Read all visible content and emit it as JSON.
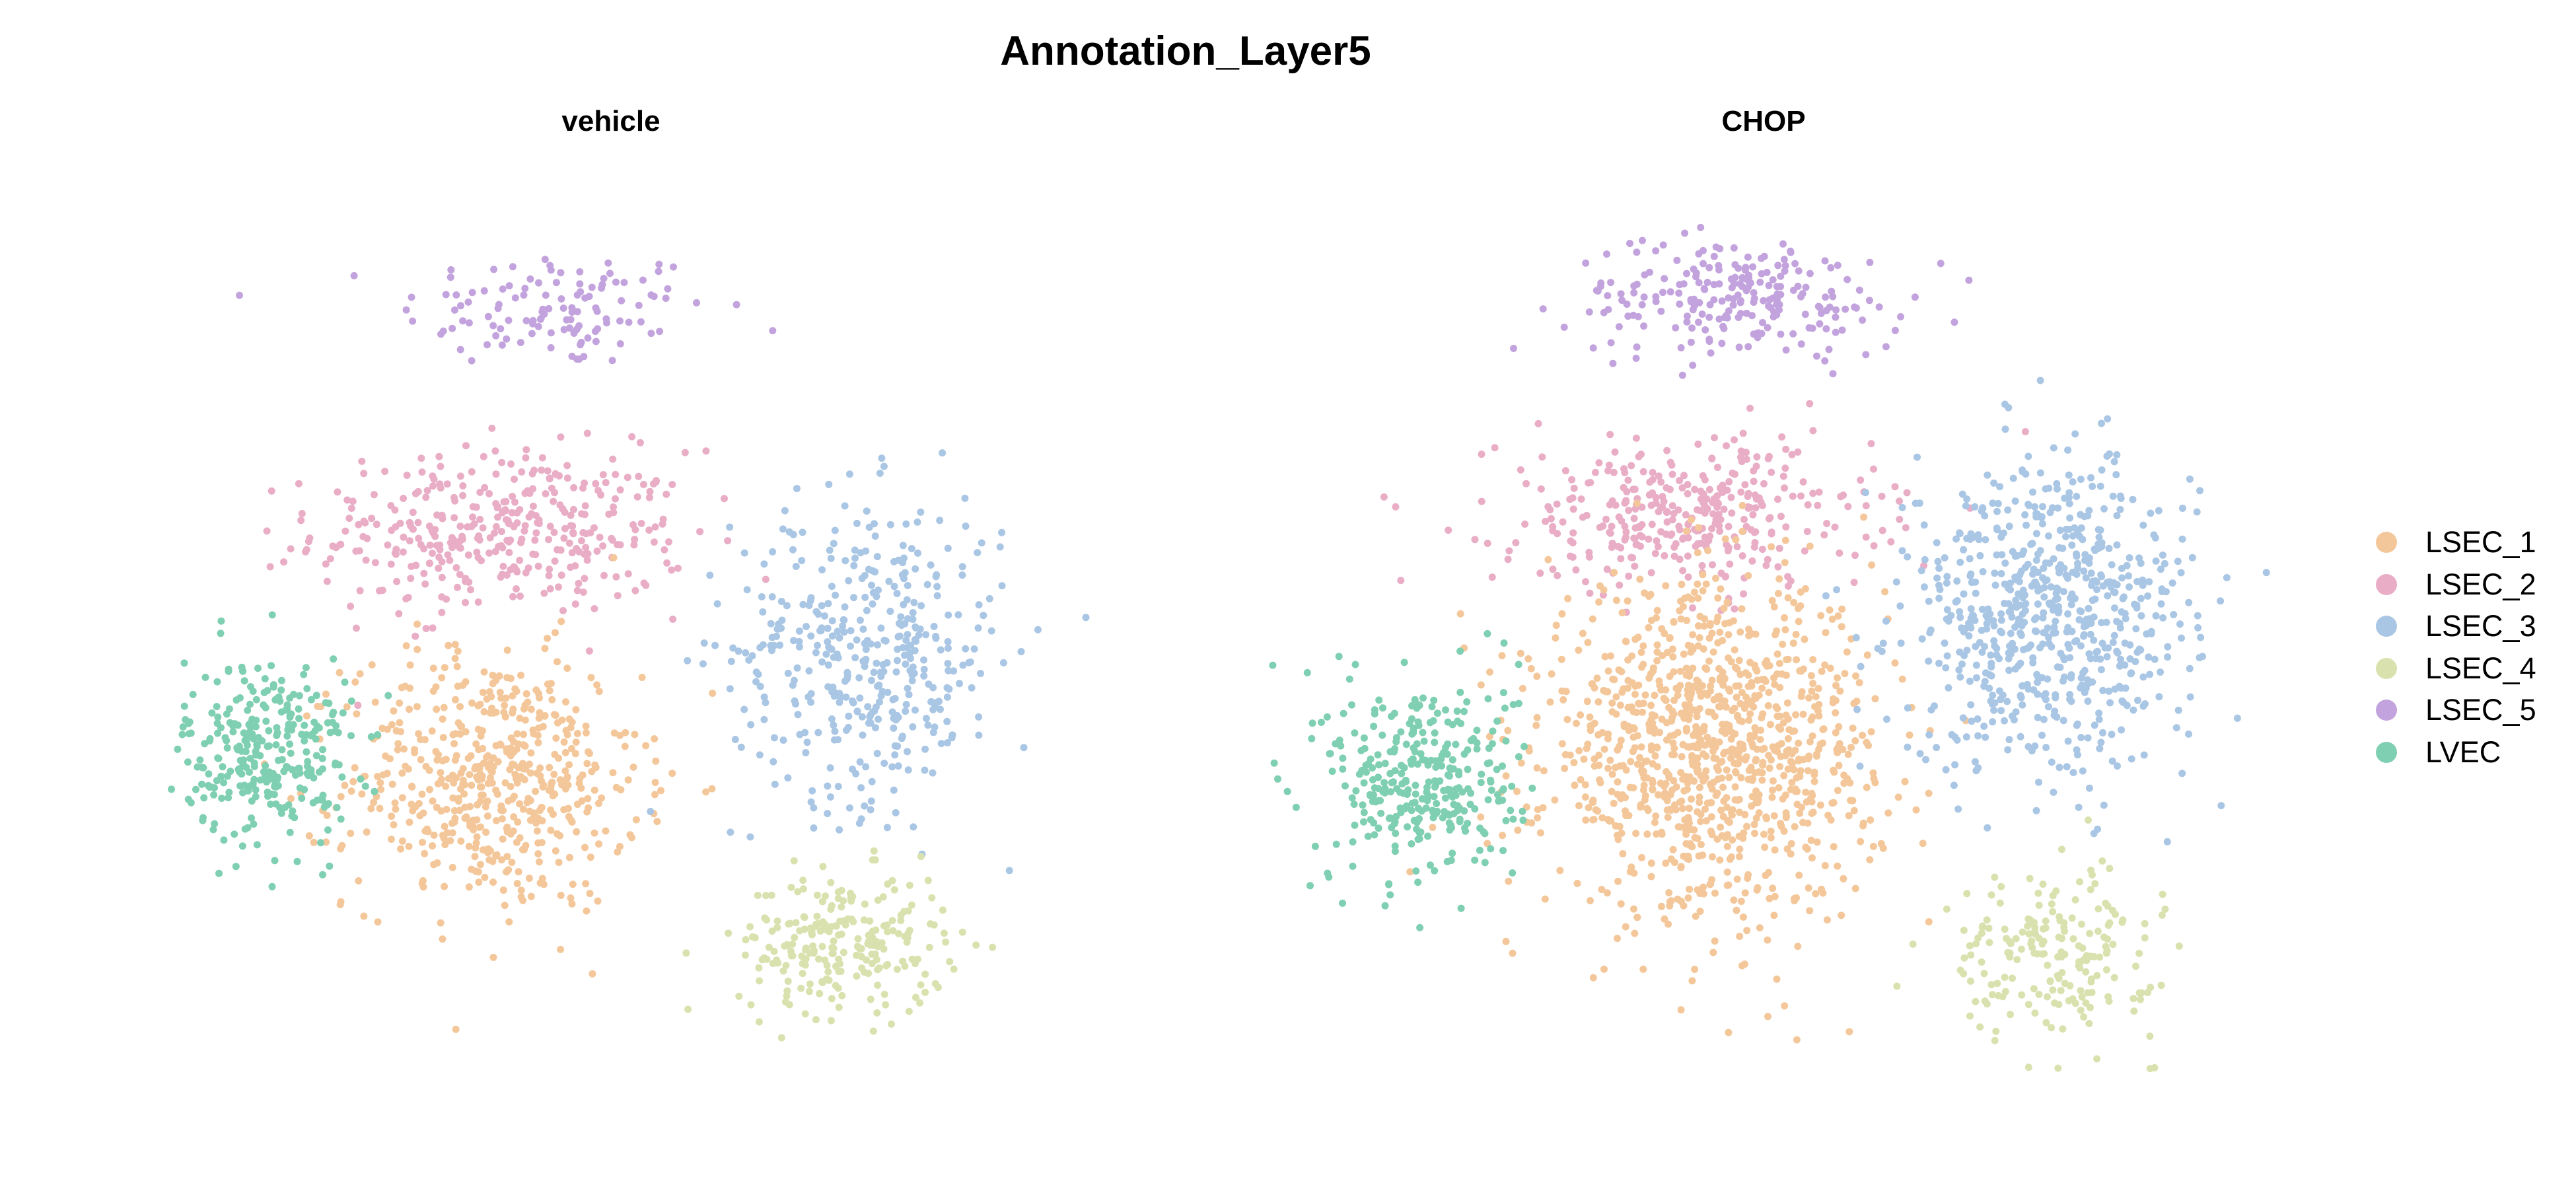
{
  "chart_data": {
    "type": "scatter",
    "title": "Annotation_Layer5",
    "xlabel": "",
    "ylabel": "",
    "grid": false,
    "axes_visible": false,
    "legend_position": "right",
    "categories": [
      "LSEC_1",
      "LSEC_2",
      "LSEC_3",
      "LSEC_4",
      "LSEC_5",
      "LVEC"
    ],
    "colors": {
      "LSEC_1": "#F4C79A",
      "LSEC_2": "#E9AEC6",
      "LSEC_3": "#A9C6E4",
      "LSEC_4": "#D9E2AE",
      "LSEC_5": "#C3A3DD",
      "LVEC": "#7FCFB2"
    },
    "panels": [
      {
        "name": "vehicle",
        "clusters": [
          {
            "category": "LSEC_5",
            "count": 120,
            "center": [
              -1.0,
              8.0
            ],
            "spread": [
              3.0,
              1.0
            ]
          },
          {
            "category": "LSEC_2",
            "count": 380,
            "center": [
              -2.0,
              4.2
            ],
            "spread": [
              3.6,
              1.4
            ]
          },
          {
            "category": "LSEC_1",
            "count": 560,
            "center": [
              -2.2,
              0.0
            ],
            "spread": [
              2.8,
              2.2
            ]
          },
          {
            "category": "LSEC_3",
            "count": 420,
            "center": [
              5.0,
              2.2
            ],
            "spread": [
              2.6,
              2.6
            ]
          },
          {
            "category": "LSEC_4",
            "count": 240,
            "center": [
              4.5,
              -2.8
            ],
            "spread": [
              2.0,
              1.2
            ]
          },
          {
            "category": "LVEC",
            "count": 300,
            "center": [
              -6.5,
              0.5
            ],
            "spread": [
              1.6,
              1.6
            ]
          }
        ]
      },
      {
        "name": "CHOP",
        "clusters": [
          {
            "category": "LSEC_5",
            "count": 230,
            "center": [
              -0.5,
              8.2
            ],
            "spread": [
              3.2,
              1.0
            ]
          },
          {
            "category": "LSEC_2",
            "count": 360,
            "center": [
              -1.5,
              4.5
            ],
            "spread": [
              3.6,
              1.3
            ]
          },
          {
            "category": "LSEC_1",
            "count": 1100,
            "center": [
              -1.0,
              0.5
            ],
            "spread": [
              3.2,
              2.8
            ]
          },
          {
            "category": "LSEC_3",
            "count": 700,
            "center": [
              5.5,
              2.8
            ],
            "spread": [
              2.8,
              2.6
            ]
          },
          {
            "category": "LSEC_4",
            "count": 200,
            "center": [
              5.5,
              -3.0
            ],
            "spread": [
              2.0,
              1.4
            ]
          },
          {
            "category": "LVEC",
            "count": 330,
            "center": [
              -6.5,
              0.0
            ],
            "spread": [
              1.8,
              1.8
            ]
          }
        ]
      }
    ],
    "xlim": [
      -10,
      10
    ],
    "ylim": [
      -5.5,
      10
    ]
  }
}
